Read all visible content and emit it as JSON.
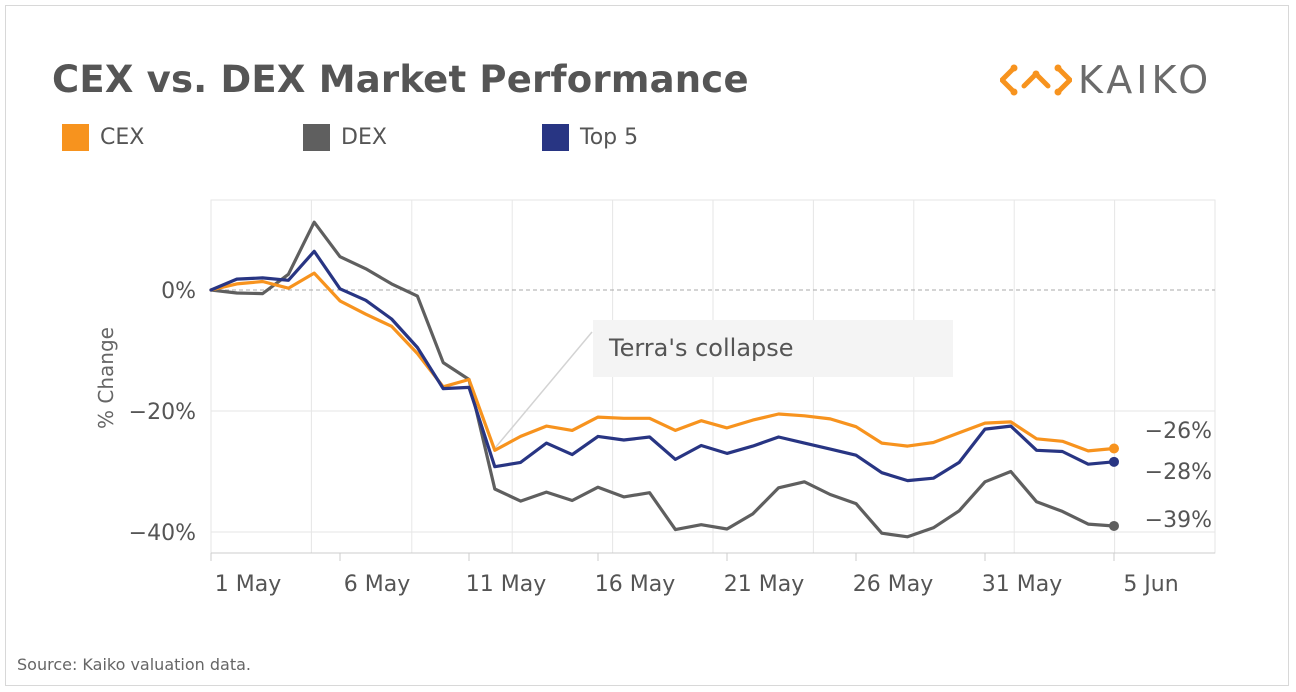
{
  "header": {
    "title": "CEX vs. DEX Market Performance",
    "logo_text": "KAIKO"
  },
  "footer": {
    "source": "Source: Kaiko valuation data."
  },
  "colors": {
    "cex": "#F7931E",
    "dex": "#5F5F5F",
    "top5": "#283583",
    "grid": "#e6e6e6",
    "zero": "#aaaaaa"
  },
  "chart_data": {
    "type": "line",
    "title": "CEX vs. DEX Market Performance",
    "xlabel": "",
    "ylabel": "% Change",
    "ylim": [
      -42,
      14
    ],
    "legend_placement": "top-left",
    "grid": true,
    "x_tick_labels": [
      "1 May",
      "6 May",
      "11 May",
      "16 May",
      "21 May",
      "26 May",
      "31 May",
      "5 Jun"
    ],
    "y_ticks": [
      {
        "value": 0,
        "label": "0%"
      },
      {
        "value": -20,
        "label": "−20%"
      },
      {
        "value": -40,
        "label": "−40%"
      }
    ],
    "x": [
      "1 May",
      "2 May",
      "3 May",
      "4 May",
      "5 May",
      "6 May",
      "7 May",
      "8 May",
      "9 May",
      "10 May",
      "11 May",
      "12 May",
      "13 May",
      "14 May",
      "15 May",
      "16 May",
      "17 May",
      "18 May",
      "19 May",
      "20 May",
      "21 May",
      "22 May",
      "23 May",
      "24 May",
      "25 May",
      "26 May",
      "27 May",
      "28 May",
      "29 May",
      "30 May",
      "31 May",
      "1 Jun",
      "2 Jun",
      "3 Jun",
      "4 Jun",
      "5 Jun"
    ],
    "series": [
      {
        "name": "CEX",
        "color": "#F7931E",
        "end_label": "−26%",
        "values": [
          0,
          1.0,
          1.4,
          0.3,
          2.8,
          -1.8,
          -4.0,
          -6.0,
          -10.5,
          -16.0,
          -14.8,
          -26.5,
          -24.2,
          -22.5,
          -23.2,
          -21.0,
          -21.2,
          -21.2,
          -23.2,
          -21.6,
          -22.8,
          -21.5,
          -20.5,
          -20.8,
          -21.3,
          -22.6,
          -25.3,
          -25.8,
          -25.2,
          -23.6,
          -22.0,
          -21.8,
          -24.6,
          -25.0,
          -26.6,
          -26.2
        ]
      },
      {
        "name": "DEX",
        "color": "#5F5F5F",
        "end_label": "−39%",
        "values": [
          0,
          -0.5,
          -0.6,
          2.6,
          11.2,
          5.5,
          3.5,
          1.0,
          -1.0,
          -12.0,
          -14.8,
          -32.9,
          -34.9,
          -33.4,
          -34.8,
          -32.6,
          -34.2,
          -33.5,
          -39.6,
          -38.8,
          -39.5,
          -37.0,
          -32.7,
          -31.7,
          -33.8,
          -35.3,
          -40.2,
          -40.8,
          -39.3,
          -36.5,
          -31.7,
          -30.0,
          -35.0,
          -36.6,
          -38.7,
          -39.0
        ]
      },
      {
        "name": "Top 5",
        "color": "#283583",
        "end_label": "−28%",
        "values": [
          0,
          1.8,
          2.0,
          1.6,
          6.4,
          0.2,
          -1.7,
          -4.8,
          -9.5,
          -16.3,
          -16.1,
          -29.2,
          -28.5,
          -25.3,
          -27.2,
          -24.2,
          -24.8,
          -24.3,
          -28.0,
          -25.7,
          -27.0,
          -25.8,
          -24.3,
          -25.3,
          -26.3,
          -27.3,
          -30.2,
          -31.5,
          -31.1,
          -28.5,
          -23.0,
          -22.5,
          -26.5,
          -26.7,
          -28.8,
          -28.4
        ]
      }
    ],
    "annotations": [
      {
        "text": "Terra's collapse",
        "x": "12 May",
        "y": -26.5
      }
    ]
  }
}
